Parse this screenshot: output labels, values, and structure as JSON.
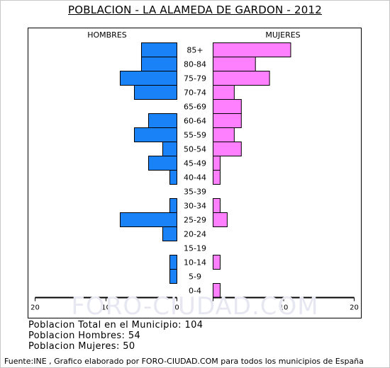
{
  "title": "POBLACION - LA ALAMEDA DE GARDON - 2012",
  "watermark": "FORO-CIUDAD.COM",
  "stats": {
    "total": "Poblacion Total en el Municipio: 104",
    "men": "Poblacion Hombres: 54",
    "women": "Poblacion Mujeres: 50"
  },
  "source": "Fuente:INE , Grafico elaborado por FORO-CIUDAD.COM para todos los municipios de España",
  "colors": {
    "men": "#1a82f7",
    "women": "#ff80ff",
    "border": "#000000",
    "watermark": "#e7e7f2"
  },
  "chart_data": {
    "type": "bar",
    "orientation": "population-pyramid",
    "title": "POBLACION - LA ALAMEDA DE GARDON - 2012",
    "categories": [
      "85+",
      "80-84",
      "75-79",
      "70-74",
      "65-69",
      "60-64",
      "55-59",
      "50-54",
      "45-49",
      "40-44",
      "35-39",
      "30-34",
      "25-29",
      "20-24",
      "15-19",
      "10-14",
      "5-9",
      "0-4"
    ],
    "series": [
      {
        "name": "HOMBRES",
        "values": [
          5,
          5,
          8,
          6,
          0,
          4,
          6,
          2,
          4,
          1,
          0,
          1,
          8,
          2,
          0,
          1,
          1,
          0
        ]
      },
      {
        "name": "MUJERES",
        "values": [
          11,
          6,
          8,
          3,
          4,
          4,
          3,
          4,
          1,
          1,
          0,
          1,
          2,
          0,
          0,
          1,
          0,
          1
        ]
      }
    ],
    "xlim": [
      -20,
      20
    ],
    "xtick_labels": [
      "20",
      "10",
      "0",
      "10",
      "20"
    ],
    "grid": false
  }
}
